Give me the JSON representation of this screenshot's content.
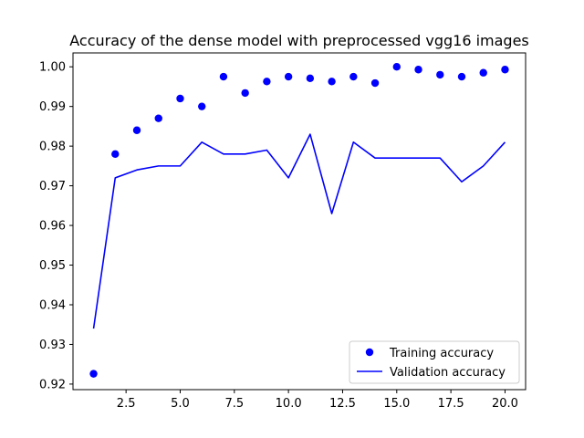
{
  "chart_data": {
    "type": "scatter",
    "title": "Accuracy of the dense model with preprocessed vgg16 images",
    "xlabel": "",
    "ylabel": "",
    "xlim": [
      0.05,
      20.95
    ],
    "ylim": [
      0.9186,
      1.0035
    ],
    "x_ticks": [
      2.5,
      5.0,
      7.5,
      10.0,
      12.5,
      15.0,
      17.5,
      20.0
    ],
    "x_tick_labels": [
      "2.5",
      "5.0",
      "7.5",
      "10.0",
      "12.5",
      "15.0",
      "17.5",
      "20.0"
    ],
    "y_ticks": [
      0.92,
      0.93,
      0.94,
      0.95,
      0.96,
      0.97,
      0.98,
      0.99,
      1.0
    ],
    "y_tick_labels": [
      "0.92",
      "0.93",
      "0.94",
      "0.95",
      "0.96",
      "0.97",
      "0.98",
      "0.99",
      "1.00"
    ],
    "grid": false,
    "legend_position": "lower-right",
    "series": [
      {
        "name": "Training accuracy",
        "kind": "scatter",
        "color": "#0000ff",
        "x": [
          1,
          2,
          3,
          4,
          5,
          6,
          7,
          8,
          9,
          10,
          11,
          12,
          13,
          14,
          15,
          16,
          17,
          18,
          19,
          20
        ],
        "y": [
          0.9226,
          0.978,
          0.984,
          0.987,
          0.992,
          0.99,
          0.9975,
          0.9934,
          0.9963,
          0.9975,
          0.9971,
          0.9963,
          0.9975,
          0.9959,
          1.0,
          0.9993,
          0.998,
          0.9975,
          0.9985,
          0.9993
        ]
      },
      {
        "name": "Validation accuracy",
        "kind": "line",
        "color": "#0000ff",
        "x": [
          1,
          2,
          3,
          4,
          5,
          6,
          7,
          8,
          9,
          10,
          11,
          12,
          13,
          14,
          15,
          16,
          17,
          18,
          19,
          20
        ],
        "y": [
          0.934,
          0.972,
          0.974,
          0.975,
          0.975,
          0.981,
          0.978,
          0.978,
          0.979,
          0.972,
          0.983,
          0.963,
          0.981,
          0.977,
          0.977,
          0.977,
          0.977,
          0.971,
          0.975,
          0.981
        ]
      }
    ]
  }
}
